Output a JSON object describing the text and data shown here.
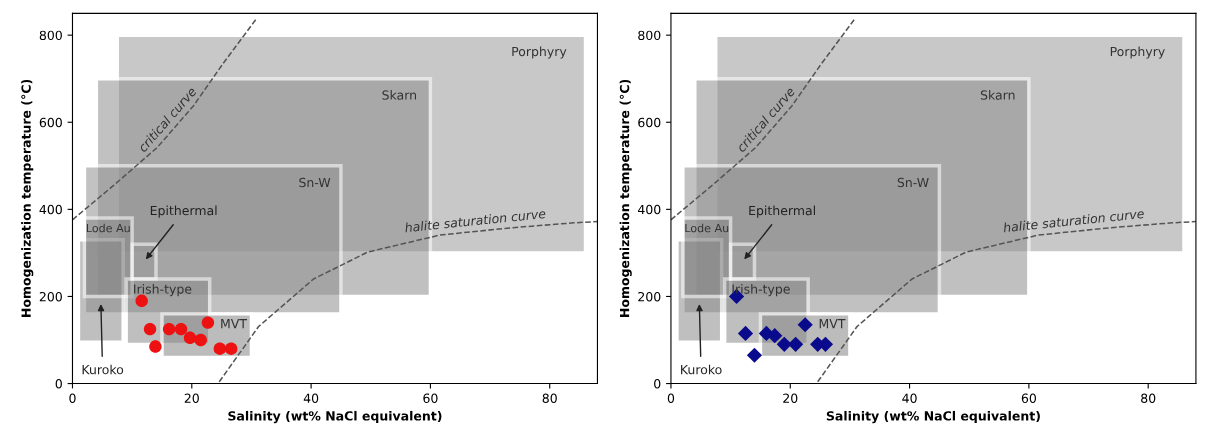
{
  "chart_data": [
    {
      "type": "scatter",
      "xlabel": "Salinity (wt% NaCl equivalent)",
      "ylabel": "Homogenization temperature (°C)",
      "xlim": [
        0,
        88
      ],
      "ylim": [
        0,
        850
      ],
      "xticks": [
        0,
        20,
        40,
        60,
        80
      ],
      "yticks": [
        0,
        200,
        400,
        600,
        800
      ],
      "grid": false,
      "series": [
        {
          "type": "area",
          "name": "Porphyry",
          "color": "#9c9c9c",
          "x": [
            7.5,
            86,
            86,
            7.5,
            7.5
          ],
          "values": [
            300,
            300,
            800,
            800,
            300
          ]
        },
        {
          "type": "area",
          "name": "Skarn",
          "color": "#8e8e8e",
          "x": [
            4,
            60,
            60,
            4,
            4
          ],
          "values": [
            200,
            200,
            700,
            700,
            200
          ]
        },
        {
          "type": "area",
          "name": "Sn-W",
          "color": "#909090",
          "x": [
            2,
            45,
            45,
            2,
            2
          ],
          "values": [
            160,
            160,
            500,
            500,
            160
          ]
        },
        {
          "type": "area",
          "name": "Kuroko",
          "color": "#8a8a8a",
          "x": [
            1,
            8.5,
            8.5,
            1,
            1
          ],
          "values": [
            95,
            95,
            330,
            330,
            95
          ]
        },
        {
          "type": "area",
          "name": "Lode Au",
          "color": "#888888",
          "x": [
            2,
            10,
            10,
            2,
            2
          ],
          "values": [
            200,
            200,
            380,
            380,
            200
          ]
        },
        {
          "type": "area",
          "name": "Epithermal",
          "color": "#999999",
          "x": [
            10,
            14,
            14,
            10,
            10
          ],
          "values": [
            240,
            240,
            320,
            320,
            240
          ]
        },
        {
          "type": "area",
          "name": "Irish-type",
          "color": "#8c8c8c",
          "x": [
            9,
            23,
            23,
            9,
            9
          ],
          "values": [
            90,
            90,
            240,
            240,
            90
          ]
        },
        {
          "type": "area",
          "name": "MVT",
          "color": "#868686",
          "x": [
            15,
            30,
            30,
            15,
            15
          ],
          "values": [
            60,
            60,
            160,
            160,
            60
          ]
        },
        {
          "type": "line",
          "name": "critical curve",
          "color": "#555555",
          "line_style": "dashed",
          "marker": "none",
          "x": [
            0,
            6.9,
            14.2,
            20.3,
            25.2,
            30.9
          ],
          "values": [
            376,
            455,
            542,
            638,
            734,
            839
          ]
        },
        {
          "type": "line",
          "name": "halite saturation curve",
          "color": "#555555",
          "line_style": "dashed",
          "marker": "none",
          "x": [
            24.6,
            31.2,
            40.4,
            49.5,
            61.6,
            73.8,
            84,
            88
          ],
          "values": [
            4,
            131,
            240,
            302,
            341,
            358,
            369,
            372
          ]
        },
        {
          "color": "#ee1111",
          "marker": "circle",
          "x": [
            11.6,
            13,
            13.9,
            16.2,
            18.2,
            19.7,
            21.5,
            22.7,
            24.7,
            26.6
          ],
          "values": [
            190,
            125,
            85,
            125,
            125,
            105,
            100,
            140,
            80,
            80
          ]
        }
      ]
    },
    {
      "type": "scatter",
      "xlabel": "Salinity (wt% NaCl equivalent)",
      "ylabel": "Homogenization temperature (°C)",
      "xlim": [
        0,
        88
      ],
      "ylim": [
        0,
        850
      ],
      "xticks": [
        0,
        20,
        40,
        60,
        80
      ],
      "yticks": [
        0,
        200,
        400,
        600,
        800
      ],
      "grid": false,
      "series": [
        {
          "type": "area",
          "name": "Porphyry",
          "color": "#9c9c9c",
          "x": [
            7.5,
            86,
            86,
            7.5,
            7.5
          ],
          "values": [
            300,
            300,
            800,
            800,
            300
          ]
        },
        {
          "type": "area",
          "name": "Skarn",
          "color": "#8e8e8e",
          "x": [
            4,
            60,
            60,
            4,
            4
          ],
          "values": [
            200,
            200,
            700,
            700,
            200
          ]
        },
        {
          "type": "area",
          "name": "Sn-W",
          "color": "#909090",
          "x": [
            2,
            45,
            45,
            2,
            2
          ],
          "values": [
            160,
            160,
            500,
            500,
            160
          ]
        },
        {
          "type": "area",
          "name": "Kuroko",
          "color": "#8a8a8a",
          "x": [
            1,
            8.5,
            8.5,
            1,
            1
          ],
          "values": [
            95,
            95,
            330,
            330,
            95
          ]
        },
        {
          "type": "area",
          "name": "Lode Au",
          "color": "#888888",
          "x": [
            2,
            10,
            10,
            2,
            2
          ],
          "values": [
            200,
            200,
            380,
            380,
            200
          ]
        },
        {
          "type": "area",
          "name": "Epithermal",
          "color": "#999999",
          "x": [
            10,
            14,
            14,
            10,
            10
          ],
          "values": [
            240,
            240,
            320,
            320,
            240
          ]
        },
        {
          "type": "area",
          "name": "Irish-type",
          "color": "#8c8c8c",
          "x": [
            9,
            23,
            23,
            9,
            9
          ],
          "values": [
            90,
            90,
            240,
            240,
            90
          ]
        },
        {
          "type": "area",
          "name": "MVT",
          "color": "#868686",
          "x": [
            15,
            30,
            30,
            15,
            15
          ],
          "values": [
            60,
            60,
            160,
            160,
            60
          ]
        },
        {
          "type": "line",
          "name": "critical curve",
          "color": "#555555",
          "line_style": "dashed",
          "marker": "none",
          "x": [
            0,
            6.9,
            14.2,
            20.3,
            25.2,
            30.9
          ],
          "values": [
            376,
            455,
            542,
            638,
            734,
            839
          ]
        },
        {
          "type": "line",
          "name": "halite saturation curve",
          "color": "#555555",
          "line_style": "dashed",
          "marker": "none",
          "x": [
            24.6,
            31.2,
            40.4,
            49.5,
            61.6,
            73.8,
            84,
            88
          ],
          "values": [
            4,
            131,
            240,
            302,
            341,
            358,
            369,
            372
          ]
        },
        {
          "color": "#0a0a8c",
          "marker": "diamond",
          "x": [
            11,
            12.5,
            14,
            16,
            17.4,
            19,
            20.9,
            22.5,
            24.6,
            25.9
          ],
          "values": [
            200,
            115,
            65,
            115,
            110,
            90,
            90,
            135,
            90,
            90
          ]
        }
      ]
    }
  ]
}
